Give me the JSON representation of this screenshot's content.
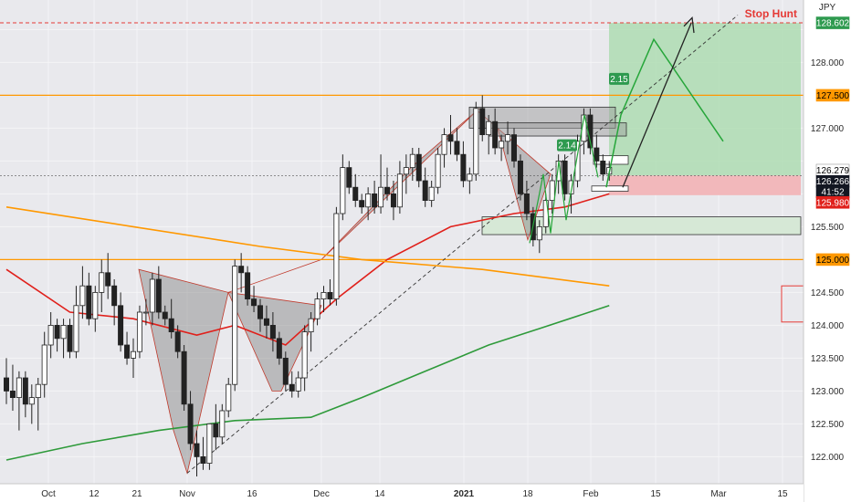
{
  "title": "Stop Hunt",
  "currency": "JPY",
  "current_price": "126.279",
  "crosshair_price": "126.266",
  "countdown": "41:52",
  "ma_price": "125.980",
  "colors": {
    "bull": "#ffffff",
    "bear": "#222222",
    "red_ma": "#e0201b",
    "green_ma": "#2e9a3a",
    "orange": "#ff9800",
    "pattern_fill": "#808080",
    "target_zone": "#a6d9a9",
    "stop_zone": "#f2b8bb",
    "projection": "#26a63a",
    "title": "#e53935"
  },
  "ratio_labels": [
    "2.15",
    "2.14"
  ],
  "chart_data": {
    "type": "candlestick",
    "title": "Stop Hunt",
    "yunit": "JPY",
    "ylim": [
      121.7,
      128.7
    ],
    "y_ticks": [
      "122.000",
      "122.500",
      "123.000",
      "123.500",
      "124.000",
      "124.500",
      "125.000",
      "125.500",
      "126.000",
      "126.500",
      "127.000",
      "127.500",
      "128.000",
      "128.500"
    ],
    "x_ticks": [
      "Oct",
      "12",
      "21",
      "Nov",
      "16",
      "Dec",
      "14",
      "2021",
      "18",
      "Feb",
      "15",
      "Mar",
      "15"
    ],
    "horizontal_levels": [
      {
        "label": "128.602",
        "style": "dashed-red"
      },
      {
        "label": "127.500",
        "style": "orange"
      },
      {
        "label": "125.000",
        "style": "orange"
      }
    ],
    "candles": [
      [
        123.2,
        123.5,
        122.8,
        123.0
      ],
      [
        123.0,
        123.4,
        122.7,
        122.9
      ],
      [
        122.9,
        123.3,
        122.4,
        123.2
      ],
      [
        123.2,
        123.3,
        122.6,
        122.8
      ],
      [
        122.8,
        123.1,
        122.5,
        122.9
      ],
      [
        122.9,
        123.2,
        122.4,
        123.1
      ],
      [
        123.1,
        123.9,
        122.9,
        123.7
      ],
      [
        123.7,
        124.2,
        123.5,
        124.0
      ],
      [
        124.0,
        124.1,
        123.6,
        123.8
      ],
      [
        123.8,
        124.1,
        123.5,
        124.0
      ],
      [
        124.0,
        124.1,
        123.5,
        123.6
      ],
      [
        123.6,
        124.6,
        123.5,
        124.3
      ],
      [
        124.3,
        124.9,
        124.1,
        124.6
      ],
      [
        124.6,
        124.8,
        124.0,
        124.1
      ],
      [
        124.1,
        124.6,
        123.9,
        124.5
      ],
      [
        124.5,
        125.0,
        124.2,
        124.8
      ],
      [
        124.8,
        125.1,
        124.4,
        124.6
      ],
      [
        124.6,
        124.7,
        124.0,
        124.3
      ],
      [
        124.3,
        124.5,
        123.6,
        123.7
      ],
      [
        123.7,
        123.9,
        123.4,
        123.5
      ],
      [
        123.5,
        123.8,
        123.2,
        123.6
      ],
      [
        123.6,
        124.3,
        123.5,
        124.2
      ],
      [
        124.2,
        124.4,
        124.0,
        124.2
      ],
      [
        124.2,
        124.8,
        124.0,
        124.7
      ],
      [
        124.7,
        124.9,
        124.1,
        124.2
      ],
      [
        124.2,
        124.3,
        124.0,
        124.1
      ],
      [
        124.1,
        124.4,
        123.8,
        123.9
      ],
      [
        123.9,
        124.0,
        123.5,
        123.6
      ],
      [
        123.6,
        123.7,
        122.7,
        122.8
      ],
      [
        122.8,
        123.0,
        122.1,
        122.2
      ],
      [
        122.2,
        122.4,
        121.7,
        122.0
      ],
      [
        122.0,
        122.3,
        121.8,
        121.9
      ],
      [
        121.9,
        122.5,
        121.8,
        122.5
      ],
      [
        122.5,
        122.8,
        122.1,
        122.3
      ],
      [
        122.3,
        122.8,
        122.2,
        122.7
      ],
      [
        122.7,
        123.2,
        122.6,
        123.1
      ],
      [
        123.1,
        125.0,
        123.0,
        124.9
      ],
      [
        124.9,
        125.1,
        124.5,
        124.8
      ],
      [
        124.8,
        124.9,
        124.3,
        124.4
      ],
      [
        124.4,
        124.6,
        124.2,
        124.3
      ],
      [
        124.3,
        124.4,
        123.9,
        124.1
      ],
      [
        124.1,
        124.3,
        123.8,
        124.0
      ],
      [
        124.0,
        124.2,
        123.6,
        123.8
      ],
      [
        123.8,
        123.9,
        123.4,
        123.5
      ],
      [
        123.5,
        123.6,
        123.0,
        123.1
      ],
      [
        123.1,
        123.3,
        122.9,
        123.0
      ],
      [
        123.0,
        123.3,
        122.9,
        123.2
      ],
      [
        123.2,
        124.0,
        123.0,
        123.9
      ],
      [
        123.9,
        124.2,
        123.6,
        124.1
      ],
      [
        124.1,
        124.5,
        124.0,
        124.4
      ],
      [
        124.4,
        124.6,
        124.2,
        124.5
      ],
      [
        124.5,
        124.7,
        124.3,
        124.4
      ],
      [
        124.4,
        125.8,
        124.3,
        125.7
      ],
      [
        125.7,
        126.6,
        125.6,
        126.4
      ],
      [
        126.4,
        126.5,
        126.0,
        126.1
      ],
      [
        126.1,
        126.3,
        125.8,
        125.9
      ],
      [
        125.9,
        126.0,
        125.7,
        125.8
      ],
      [
        125.8,
        126.1,
        125.6,
        126.0
      ],
      [
        126.0,
        126.2,
        125.7,
        125.8
      ],
      [
        125.8,
        126.6,
        125.7,
        126.1
      ],
      [
        126.1,
        126.4,
        125.9,
        126.0
      ],
      [
        126.0,
        126.2,
        125.6,
        125.8
      ],
      [
        125.8,
        126.5,
        125.7,
        126.3
      ],
      [
        126.3,
        126.6,
        126.0,
        126.4
      ],
      [
        126.4,
        126.7,
        126.2,
        126.6
      ],
      [
        126.6,
        126.7,
        126.1,
        126.2
      ],
      [
        126.2,
        126.4,
        125.8,
        125.9
      ],
      [
        125.9,
        126.2,
        125.8,
        126.1
      ],
      [
        126.1,
        126.7,
        126.0,
        126.6
      ],
      [
        126.6,
        127.0,
        126.4,
        126.9
      ],
      [
        126.9,
        127.2,
        126.6,
        126.8
      ],
      [
        126.8,
        127.0,
        126.5,
        126.6
      ],
      [
        126.6,
        126.8,
        126.1,
        126.2
      ],
      [
        126.2,
        126.4,
        126.0,
        126.3
      ],
      [
        126.3,
        127.4,
        126.2,
        127.3
      ],
      [
        127.3,
        127.5,
        126.8,
        126.9
      ],
      [
        126.9,
        127.2,
        126.6,
        127.1
      ],
      [
        127.1,
        127.3,
        126.6,
        126.7
      ],
      [
        126.7,
        126.9,
        126.5,
        126.8
      ],
      [
        126.8,
        127.1,
        126.6,
        126.9
      ],
      [
        126.9,
        127.0,
        126.4,
        126.5
      ],
      [
        126.5,
        126.6,
        125.9,
        126.0
      ],
      [
        126.0,
        126.2,
        125.6,
        125.7
      ],
      [
        125.7,
        125.8,
        125.2,
        125.3
      ],
      [
        125.3,
        125.6,
        125.1,
        125.5
      ],
      [
        125.5,
        126.0,
        125.4,
        125.9
      ],
      [
        125.9,
        126.3,
        125.7,
        126.2
      ],
      [
        126.2,
        126.6,
        126.0,
        126.5
      ],
      [
        126.5,
        126.6,
        125.9,
        126.0
      ],
      [
        126.0,
        126.3,
        125.7,
        126.2
      ],
      [
        126.2,
        126.9,
        126.1,
        126.8
      ],
      [
        126.8,
        127.3,
        126.6,
        127.2
      ],
      [
        127.2,
        127.3,
        126.6,
        126.7
      ],
      [
        126.7,
        126.9,
        126.4,
        126.5
      ],
      [
        126.5,
        126.6,
        126.2,
        126.3
      ],
      [
        126.3,
        126.5,
        126.2,
        126.4
      ]
    ],
    "series": [
      {
        "values": [
          [
            0,
            124.85
          ],
          [
            10,
            124.2
          ],
          [
            20,
            124.1
          ],
          [
            30,
            123.85
          ],
          [
            36,
            124.0
          ],
          [
            44,
            123.7
          ],
          [
            52,
            124.4
          ],
          [
            60,
            125.0
          ],
          [
            70,
            125.5
          ],
          [
            80,
            125.7
          ],
          [
            88,
            125.8
          ],
          [
            95,
            126.0
          ]
        ]
      },
      {
        "values": [
          [
            0,
            121.95
          ],
          [
            12,
            122.2
          ],
          [
            24,
            122.4
          ],
          [
            36,
            122.55
          ],
          [
            48,
            122.6
          ],
          [
            56,
            122.9
          ],
          [
            66,
            123.3
          ],
          [
            76,
            123.7
          ],
          [
            84,
            123.95
          ],
          [
            95,
            124.3
          ]
        ]
      },
      {
        "values": [
          [
            0,
            125.8
          ],
          [
            20,
            125.5
          ],
          [
            40,
            125.2
          ],
          [
            56,
            125.0
          ],
          [
            75,
            124.85
          ],
          [
            95,
            124.6
          ]
        ]
      }
    ]
  }
}
